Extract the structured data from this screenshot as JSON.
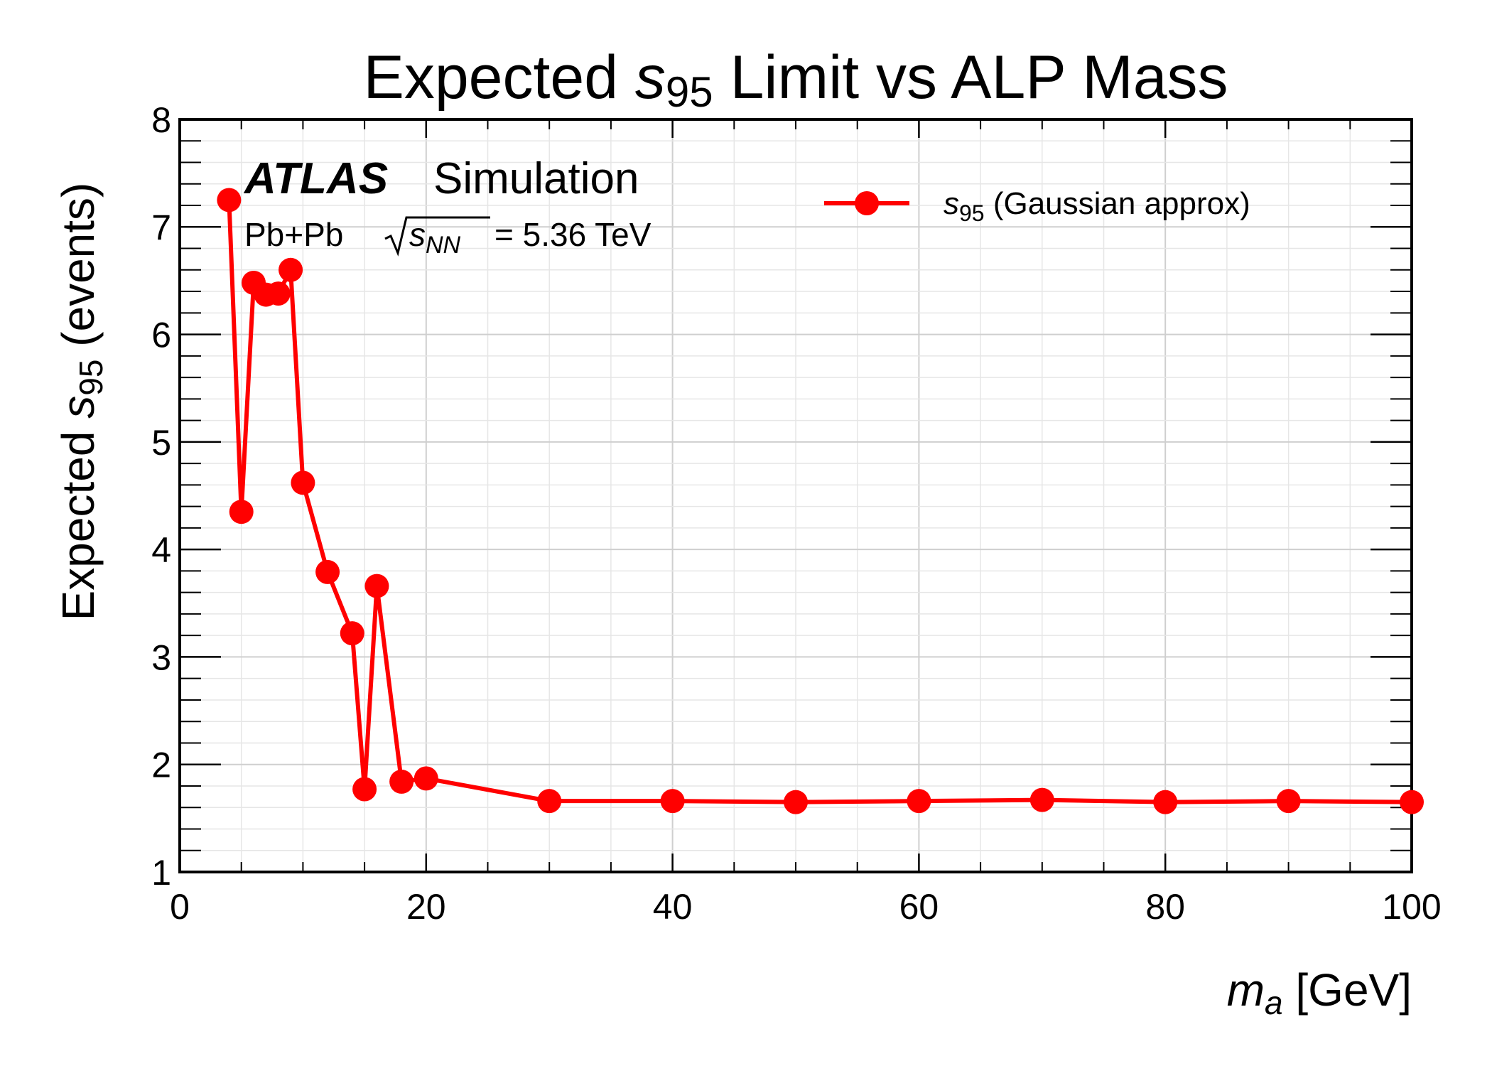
{
  "chart_data": {
    "type": "line",
    "title": {
      "pre": "Expected ",
      "sym": "s",
      "sub": "95",
      "post": " Limit vs ALP Mass"
    },
    "xlabel": {
      "sym": "m",
      "sub": "a",
      "post": " [GeV]"
    },
    "ylabel": {
      "pre": "Expected ",
      "sym": "s",
      "sub": "95",
      "post": " (events)"
    },
    "xlim": [
      0,
      100
    ],
    "ylim": [
      1,
      8
    ],
    "xticks": [
      0,
      20,
      40,
      60,
      80,
      100
    ],
    "yticks": [
      1,
      2,
      3,
      4,
      5,
      6,
      7,
      8
    ],
    "x_minor_step": 5,
    "y_minor_step": 0.2,
    "grid": true,
    "legend_position": "top-right",
    "annotation": {
      "experiment": "ATLAS",
      "label": "Simulation",
      "system": "Pb+Pb",
      "energy_sym": "s",
      "energy_sub": "NN",
      "energy_value": "= 5.36 TeV"
    },
    "series": [
      {
        "name_sym": "s",
        "name_sub": "95",
        "name_post": " (Gaussian approx)",
        "color": "#ff0000",
        "marker": "circle",
        "x": [
          4,
          5,
          6,
          7,
          8,
          9,
          10,
          12,
          14,
          15,
          16,
          18,
          20,
          30,
          40,
          50,
          60,
          70,
          80,
          90,
          100
        ],
        "y": [
          7.25,
          4.35,
          6.48,
          6.37,
          6.38,
          6.6,
          4.62,
          3.79,
          3.22,
          1.77,
          3.66,
          1.84,
          1.87,
          1.66,
          1.66,
          1.65,
          1.66,
          1.67,
          1.65,
          1.66,
          1.65
        ]
      }
    ]
  }
}
